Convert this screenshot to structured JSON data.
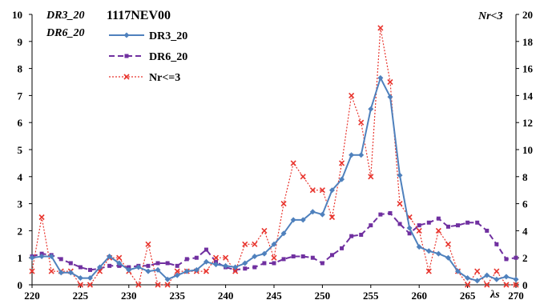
{
  "chart_data": {
    "type": "line",
    "title": "1117NEV00",
    "left_axis_labels": [
      "DR3_20",
      "DR6_20"
    ],
    "right_axis_label": "Nr<3",
    "xlabel": "λs",
    "xlim": [
      220,
      270
    ],
    "ylim_left": [
      0,
      10
    ],
    "ylim_right": [
      0,
      20
    ],
    "x_ticks": [
      220,
      225,
      230,
      235,
      240,
      245,
      250,
      255,
      260,
      265,
      270
    ],
    "y_ticks_left": [
      0,
      1,
      2,
      3,
      4,
      5,
      6,
      7,
      8,
      9,
      10
    ],
    "y_ticks_right": [
      0,
      2,
      4,
      6,
      8,
      10,
      12,
      14,
      16,
      18,
      20
    ],
    "legend_position": "top-left",
    "series": [
      {
        "name": "DR3_20",
        "axis": "left",
        "color": "#4f81bd",
        "style": "solid",
        "marker": "diamond",
        "x": [
          220,
          221,
          222,
          223,
          224,
          225,
          226,
          227,
          228,
          229,
          230,
          231,
          232,
          233,
          234,
          235,
          236,
          237,
          238,
          239,
          240,
          241,
          242,
          243,
          244,
          245,
          246,
          247,
          248,
          249,
          250,
          251,
          252,
          253,
          254,
          255,
          256,
          257,
          258,
          259,
          260,
          261,
          262,
          263,
          264,
          265,
          266,
          267,
          268,
          269,
          270
        ],
        "y": [
          1.0,
          1.05,
          1.05,
          0.45,
          0.45,
          0.25,
          0.25,
          0.65,
          1.05,
          0.8,
          0.55,
          0.65,
          0.5,
          0.55,
          0.2,
          0.35,
          0.5,
          0.55,
          0.85,
          0.75,
          0.7,
          0.65,
          0.8,
          1.05,
          1.15,
          1.5,
          1.9,
          2.4,
          2.4,
          2.7,
          2.6,
          3.5,
          3.9,
          4.8,
          4.8,
          6.5,
          7.65,
          6.95,
          4.05,
          2.1,
          1.4,
          1.25,
          1.15,
          1.0,
          0.5,
          0.25,
          0.15,
          0.35,
          0.2,
          0.3,
          0.2
        ]
      },
      {
        "name": "DR6_20",
        "axis": "left",
        "color": "#7030a0",
        "style": "dashed",
        "marker": "square",
        "x": [
          220,
          221,
          222,
          223,
          224,
          225,
          226,
          227,
          228,
          229,
          230,
          231,
          232,
          233,
          234,
          235,
          236,
          237,
          238,
          239,
          240,
          241,
          242,
          243,
          244,
          245,
          246,
          247,
          248,
          249,
          250,
          251,
          252,
          253,
          254,
          255,
          256,
          257,
          258,
          259,
          260,
          261,
          262,
          263,
          264,
          265,
          266,
          267,
          268,
          269,
          270
        ],
        "y": [
          1.05,
          1.15,
          1.1,
          0.95,
          0.8,
          0.65,
          0.55,
          0.6,
          0.7,
          0.7,
          0.65,
          0.7,
          0.7,
          0.8,
          0.8,
          0.7,
          0.95,
          1.0,
          1.3,
          0.85,
          0.65,
          0.55,
          0.6,
          0.65,
          0.8,
          0.8,
          0.95,
          1.05,
          1.05,
          1.0,
          0.8,
          1.1,
          1.35,
          1.8,
          1.85,
          2.2,
          2.6,
          2.65,
          2.25,
          1.9,
          2.2,
          2.3,
          2.45,
          2.15,
          2.2,
          2.3,
          2.3,
          2.0,
          1.5,
          0.95,
          1.0
        ]
      },
      {
        "name": "Nr<=3",
        "axis": "right",
        "color": "#e8352e",
        "style": "dotted",
        "marker": "x",
        "x": [
          220,
          221,
          222,
          223,
          224,
          225,
          226,
          227,
          228,
          229,
          230,
          231,
          232,
          233,
          234,
          235,
          236,
          237,
          238,
          239,
          240,
          241,
          242,
          243,
          244,
          245,
          246,
          247,
          248,
          249,
          250,
          251,
          252,
          253,
          254,
          255,
          256,
          257,
          258,
          259,
          260,
          261,
          262,
          263,
          264,
          265,
          266,
          267,
          268,
          269,
          270
        ],
        "y": [
          1,
          5,
          1,
          1,
          1,
          0,
          0,
          1,
          2,
          2,
          1,
          0,
          3,
          0,
          0,
          1,
          1,
          1,
          1,
          2,
          2,
          1,
          3,
          3,
          4,
          2,
          6,
          9,
          8,
          7,
          7,
          5,
          9,
          14,
          12,
          8,
          19,
          15,
          6,
          5,
          4,
          1,
          4,
          3,
          1,
          0,
          1,
          0,
          1,
          0,
          0
        ]
      }
    ]
  }
}
